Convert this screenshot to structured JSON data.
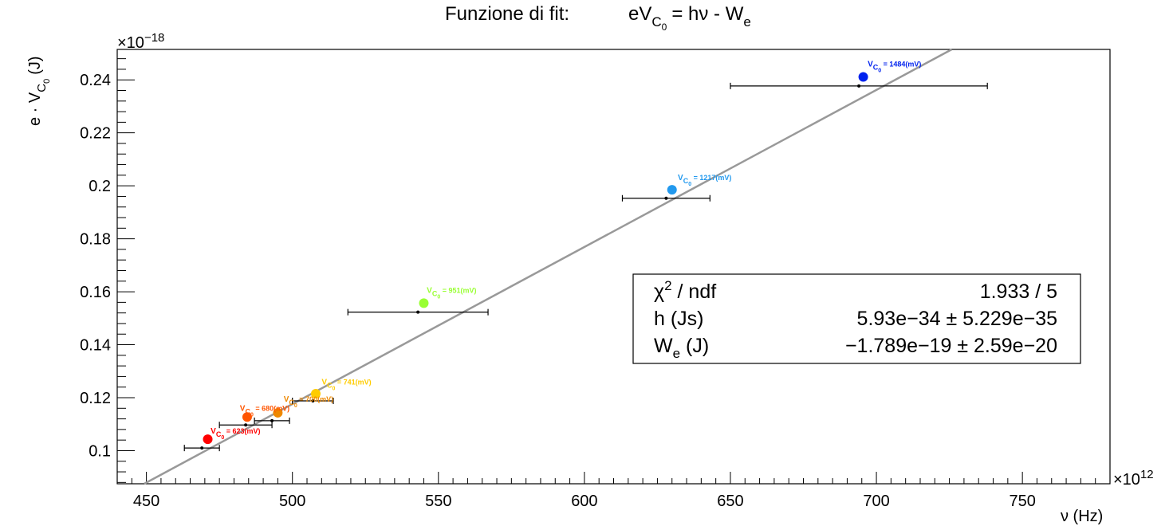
{
  "chart_data": {
    "type": "scatter",
    "title": "Funzione di fit:",
    "title_formula": {
      "lhs_main": "eV",
      "lhs_sub": "C",
      "lhs_subsub": "0",
      "rhs": "= hν - W",
      "rhs_sub": "e"
    },
    "xlabel": "ν (Hz)",
    "ylabel_main": "e · V",
    "ylabel_sub": "C",
    "ylabel_subsub": "0",
    "ylabel_unit": "(J)",
    "x_exponent_label": "×10",
    "x_exponent": "12",
    "y_exponent_label": "×10",
    "y_exponent": "−18",
    "xlim": [
      440,
      780
    ],
    "ylim": [
      0.0875,
      0.2515
    ],
    "x_ticks": [
      "450",
      "500",
      "550",
      "600",
      "650",
      "700",
      "750"
    ],
    "y_ticks": [
      "0.1",
      "0.12",
      "0.14",
      "0.16",
      "0.18",
      "0.2",
      "0.22",
      "0.24"
    ],
    "fit_line": {
      "slope": 0.000593,
      "intercept": -0.1789,
      "color": "#999999"
    },
    "measurements": [
      {
        "x": 469,
        "y": 0.101,
        "xerr": 6
      },
      {
        "x": 484,
        "y": 0.1097,
        "xerr": 9
      },
      {
        "x": 493,
        "y": 0.1113,
        "xerr": 6
      },
      {
        "x": 507,
        "y": 0.1188,
        "xerr": 7
      },
      {
        "x": 543,
        "y": 0.1523,
        "xerr": 24
      },
      {
        "x": 628,
        "y": 0.1953,
        "xerr": 15
      },
      {
        "x": 694,
        "y": 0.2377,
        "xerr": 44
      }
    ],
    "markers": [
      {
        "x": 471,
        "y": 0.1043,
        "color": "#ff0000"
      },
      {
        "x": 484.5,
        "y": 0.1127,
        "color": "#ff5500"
      },
      {
        "x": 495,
        "y": 0.1143,
        "color": "#ee8800"
      },
      {
        "x": 508,
        "y": 0.1215,
        "color": "#ffcc00"
      },
      {
        "x": 545,
        "y": 0.1557,
        "color": "#99ff33"
      },
      {
        "x": 630,
        "y": 0.1985,
        "color": "#2299ee"
      },
      {
        "x": 695.5,
        "y": 0.2411,
        "color": "#0022ee"
      }
    ],
    "annotations": [
      {
        "x": 472,
        "y": 0.1065,
        "prefix": "V",
        "sub": "C",
        "subsub": "0",
        "value": " = 623(mV)",
        "color": "#ff0000"
      },
      {
        "x": 482,
        "y": 0.115,
        "prefix": "V",
        "sub": "C",
        "subsub": "0",
        "value": " = 680(mV)",
        "color": "#ff5500"
      },
      {
        "x": 497,
        "y": 0.1185,
        "prefix": "V",
        "sub": "C",
        "subsub": "0",
        "value": " = 700(mV)",
        "color": "#ee8800"
      },
      {
        "x": 510,
        "y": 0.125,
        "prefix": "V",
        "sub": "C",
        "subsub": "0",
        "value": " = 741(mV)",
        "color": "#ffcc00"
      },
      {
        "x": 546,
        "y": 0.1595,
        "prefix": "V",
        "sub": "C",
        "subsub": "0",
        "value": " = 951(mV)",
        "color": "#99ff33"
      },
      {
        "x": 632,
        "y": 0.2022,
        "prefix": "V",
        "sub": "C",
        "subsub": "0",
        "value": " = 1217(mV)",
        "color": "#2299ee"
      },
      {
        "x": 697,
        "y": 0.245,
        "prefix": "V",
        "sub": "C",
        "subsub": "0",
        "value": " = 1484(mV)",
        "color": "#0022ee"
      }
    ],
    "stats_box": {
      "rows": [
        {
          "label_main": "χ",
          "label_sup": "2",
          "label_rest": " / ndf",
          "value": "1.933 / 5"
        },
        {
          "label_main": "h (Js)",
          "label_sup": "",
          "label_rest": "",
          "value": "5.93e−34 ± 5.229e−35"
        },
        {
          "label_main": "W",
          "label_sub": "e",
          "label_rest": " (J)",
          "value": "−1.789e−19 ± 2.59e−20"
        }
      ]
    }
  }
}
